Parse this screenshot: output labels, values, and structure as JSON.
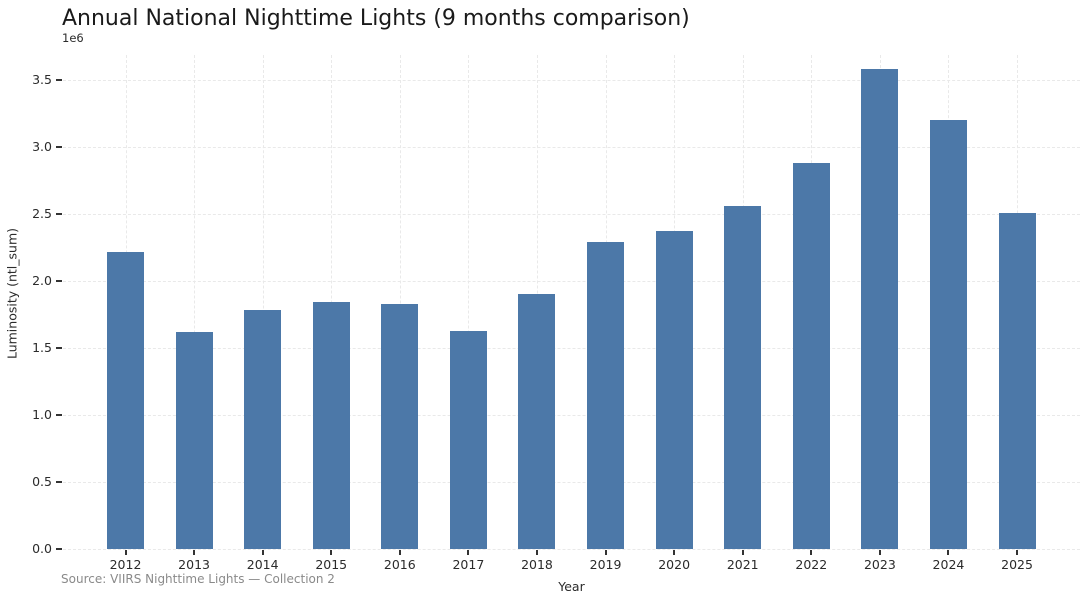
{
  "title": "Annual National Nighttime Lights (9 months comparison)",
  "offset_label": "1e6",
  "source_note": "Source: VIIRS Nighttime Lights — Collection 2",
  "chart_data": {
    "type": "bar",
    "title": "Annual National Nighttime Lights (9 months comparison)",
    "xlabel": "Year",
    "ylabel": "Luminosity (ntl_sum)",
    "y_offset_multiplier": "1e6",
    "categories": [
      "2012",
      "2013",
      "2014",
      "2015",
      "2016",
      "2017",
      "2018",
      "2019",
      "2020",
      "2021",
      "2022",
      "2023",
      "2024",
      "2025"
    ],
    "values": [
      2.22,
      1.62,
      1.78,
      1.84,
      1.83,
      1.63,
      1.9,
      2.29,
      2.37,
      2.56,
      2.88,
      3.58,
      3.2,
      2.51
    ],
    "values_unit": "×1e6 ntl_sum",
    "yticks": [
      0.0,
      0.5,
      1.0,
      1.5,
      2.0,
      2.5,
      3.0,
      3.5
    ],
    "ylim": [
      0,
      3.68
    ],
    "grid": "dashed horizontal at 0.5 intervals and vertical at category centers",
    "legend": "none",
    "source": "Source: VIIRS Nighttime Lights — Collection 2"
  },
  "colors": {
    "bar": "#4c78a8",
    "grid": "#e9e9e9",
    "text": "#2b2b2b",
    "title_text": "#1a1a1a",
    "muted_text": "#8a8a8a",
    "background": "#ffffff"
  }
}
